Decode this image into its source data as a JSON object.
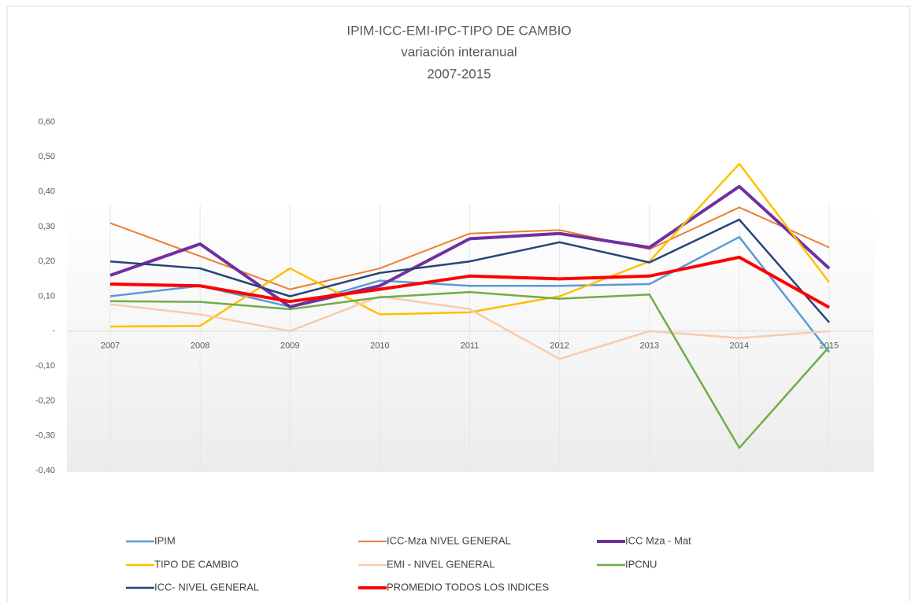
{
  "chart_data": {
    "type": "line",
    "title": "IPIM-ICC-EMI-IPC-TIPO DE CAMBIO",
    "subtitle": "variación interanual",
    "period": "2007-2015",
    "categories": [
      "2007",
      "2008",
      "2009",
      "2010",
      "2011",
      "2012",
      "2013",
      "2014",
      "2015"
    ],
    "ylim": [
      -0.4,
      0.6
    ],
    "yticks": [
      {
        "value": 0.6,
        "label": "0,60"
      },
      {
        "value": 0.5,
        "label": "0,50"
      },
      {
        "value": 0.4,
        "label": "0,40"
      },
      {
        "value": 0.3,
        "label": "0,30"
      },
      {
        "value": 0.2,
        "label": "0,20"
      },
      {
        "value": 0.1,
        "label": "0,10"
      },
      {
        "value": 0,
        "label": "-"
      },
      {
        "value": -0.1,
        "label": "-0,10"
      },
      {
        "value": -0.2,
        "label": "-0,20"
      },
      {
        "value": -0.3,
        "label": "-0,30"
      },
      {
        "value": -0.4,
        "label": "-0,40"
      }
    ],
    "legend": "bottom",
    "series": [
      {
        "name": "IPIM",
        "color": "#5b9bd5",
        "line_width": 2.5,
        "values": [
          0.1,
          0.13,
          0.07,
          0.145,
          0.13,
          0.13,
          0.135,
          0.27,
          -0.06
        ]
      },
      {
        "name": "ICC-Mza NIVEL GENERAL",
        "color": "#ed7d31",
        "line_width": 2,
        "values": [
          0.31,
          0.215,
          0.12,
          0.18,
          0.28,
          0.29,
          0.235,
          0.355,
          0.24
        ]
      },
      {
        "name": "ICC Mza - Mat",
        "color": "#7030a0",
        "line_width": 4,
        "values": [
          0.16,
          0.25,
          0.07,
          0.13,
          0.265,
          0.28,
          0.24,
          0.415,
          0.18
        ]
      },
      {
        "name": "TIPO DE CAMBIO",
        "color": "#ffc000",
        "line_width": 2.5,
        "values": [
          0.013,
          0.015,
          0.18,
          0.048,
          0.054,
          0.1,
          0.2,
          0.48,
          0.14
        ]
      },
      {
        "name": "EMI - NIVEL GENERAL",
        "color": "#f8cbad",
        "line_width": 2.5,
        "values": [
          0.077,
          0.048,
          0.0,
          0.1,
          0.063,
          -0.08,
          0.0,
          -0.02,
          0.0
        ]
      },
      {
        "name": "IPCNU",
        "color": "#70ad47",
        "line_width": 2.5,
        "values": [
          0.086,
          0.084,
          0.063,
          0.097,
          0.112,
          0.093,
          0.105,
          -0.335,
          -0.045
        ]
      },
      {
        "name": "ICC- NIVEL GENERAL",
        "color": "#264478",
        "line_width": 2.5,
        "values": [
          0.2,
          0.18,
          0.1,
          0.167,
          0.2,
          0.255,
          0.197,
          0.32,
          0.025
        ]
      },
      {
        "name": "PROMEDIO TODOS LOS INDICES",
        "color": "#ff0000",
        "line_width": 4,
        "values": [
          0.135,
          0.13,
          0.085,
          0.12,
          0.158,
          0.15,
          0.158,
          0.212,
          0.068
        ]
      }
    ]
  }
}
